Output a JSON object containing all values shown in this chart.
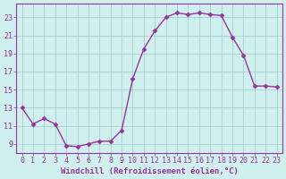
{
  "x": [
    0,
    1,
    2,
    3,
    4,
    5,
    6,
    7,
    8,
    9,
    10,
    11,
    12,
    13,
    14,
    15,
    16,
    17,
    18,
    19,
    20,
    21,
    22,
    23
  ],
  "y": [
    13.0,
    11.2,
    11.8,
    11.2,
    8.8,
    8.7,
    9.0,
    9.3,
    9.3,
    10.5,
    16.2,
    19.5,
    21.5,
    23.0,
    23.5,
    23.3,
    23.5,
    23.3,
    23.2,
    20.8,
    18.8,
    15.4,
    15.4,
    15.3
  ],
  "line_color": "#993399",
  "marker": "D",
  "marker_size": 2.5,
  "bg_color": "#d0f0f0",
  "grid_color": "#a0c8c8",
  "xlabel": "Windchill (Refroidissement éolien,°C)",
  "ylim": [
    8.0,
    24.5
  ],
  "xlim": [
    -0.5,
    23.5
  ],
  "yticks": [
    9,
    11,
    13,
    15,
    17,
    19,
    21,
    23
  ],
  "xticks": [
    0,
    1,
    2,
    3,
    4,
    5,
    6,
    7,
    8,
    9,
    10,
    11,
    12,
    13,
    14,
    15,
    16,
    17,
    18,
    19,
    20,
    21,
    22,
    23
  ],
  "tick_color": "#993399",
  "font_size": 6.0,
  "xlabel_fontsize": 6.5,
  "lw": 1.0
}
